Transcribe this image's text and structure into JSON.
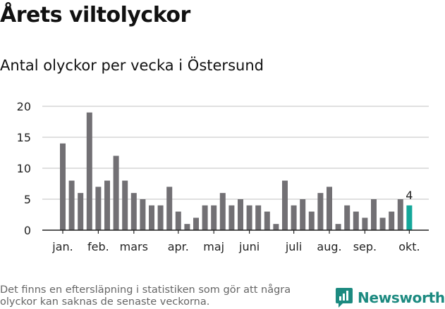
{
  "header": {
    "title": "Årets viltolyckor",
    "subtitle": "Antal olyckor per vecka i Östersund"
  },
  "footer": {
    "note": "Det finns en eftersläpning i statistiken som gör att några olyckor kan saknas de senaste veckorna.",
    "brand": "Newsworthy"
  },
  "colors": {
    "bar": "#727074",
    "highlight": "#14a79a",
    "brand": "#1c8a80"
  },
  "chart_data": {
    "type": "bar",
    "title": "Antal olyckor per vecka i Östersund",
    "xlabel": "",
    "ylabel": "",
    "ylim": [
      0,
      20
    ],
    "yticks": [
      0,
      5,
      10,
      15,
      20
    ],
    "grid": true,
    "weeks": [
      1,
      2,
      3,
      4,
      5,
      6,
      7,
      8,
      9,
      10,
      11,
      12,
      13,
      14,
      15,
      16,
      17,
      18,
      19,
      20,
      21,
      22,
      23,
      24,
      25,
      26,
      27,
      28,
      29,
      30,
      31,
      32,
      33,
      34,
      35,
      36,
      37,
      38,
      39,
      40
    ],
    "values": [
      14,
      8,
      6,
      19,
      7,
      8,
      12,
      8,
      6,
      5,
      4,
      4,
      7,
      3,
      1,
      2,
      4,
      4,
      6,
      4,
      5,
      4,
      4,
      3,
      1,
      8,
      4,
      5,
      3,
      6,
      7,
      1,
      4,
      3,
      2,
      5,
      2,
      3,
      5,
      4
    ],
    "month_labels": [
      {
        "label": "jan.",
        "week": 1
      },
      {
        "label": "feb.",
        "week": 5
      },
      {
        "label": "mars",
        "week": 9
      },
      {
        "label": "apr.",
        "week": 14
      },
      {
        "label": "maj",
        "week": 18
      },
      {
        "label": "juni",
        "week": 22
      },
      {
        "label": "juli",
        "week": 27
      },
      {
        "label": "aug.",
        "week": 31
      },
      {
        "label": "sep.",
        "week": 35
      },
      {
        "label": "okt.",
        "week": 40
      }
    ],
    "highlight": {
      "week": 40,
      "value": 4,
      "label": "4"
    }
  }
}
